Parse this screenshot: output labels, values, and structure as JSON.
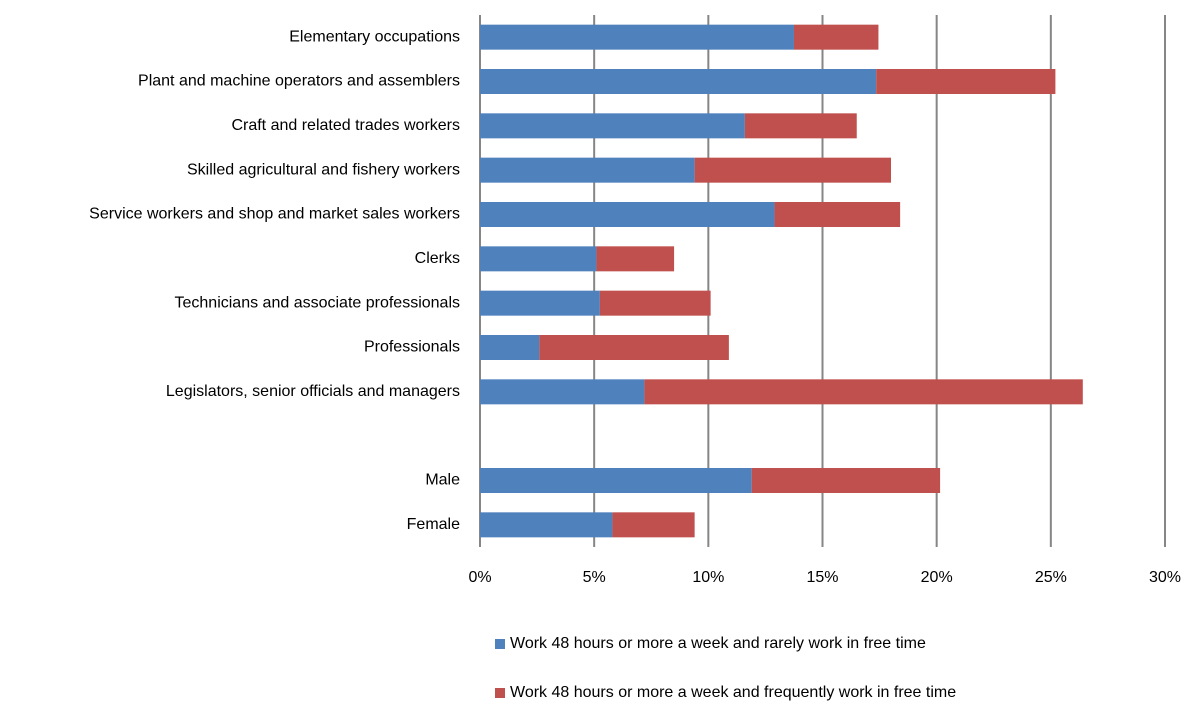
{
  "chart_data": {
    "type": "stacked_bar_horizontal",
    "categories": [
      "Elementary occupations",
      "Plant and machine operators and assemblers",
      "Craft and related trades workers",
      "Skilled agricultural and fishery workers",
      "Service workers and shop and market sales workers",
      "Clerks",
      "Technicians and associate professionals",
      "Professionals",
      "Legislators, senior officials and managers",
      null,
      "Male",
      "Female"
    ],
    "series": [
      {
        "name": "Work 48 hours or more a week and rarely work in free time",
        "color": "#4f81bd",
        "values": [
          13.75,
          17.35,
          11.6,
          9.4,
          12.9,
          5.1,
          5.25,
          2.6,
          7.2,
          null,
          11.9,
          5.8
        ]
      },
      {
        "name": "Work 48 hours or more a week and frequently work in free time",
        "color": "#c0504d",
        "values": [
          3.7,
          7.85,
          4.9,
          8.6,
          5.5,
          3.4,
          4.85,
          8.3,
          19.2,
          null,
          8.25,
          3.6
        ]
      }
    ],
    "xlim": [
      0,
      30
    ],
    "xticks": [
      {
        "value": 0,
        "label": "0%"
      },
      {
        "value": 5,
        "label": "5%"
      },
      {
        "value": 10,
        "label": "10%"
      },
      {
        "value": 15,
        "label": "15%"
      },
      {
        "value": 20,
        "label": "20%"
      },
      {
        "value": 25,
        "label": "25%"
      },
      {
        "value": 30,
        "label": "30%"
      }
    ],
    "grid": true,
    "legend": "bottom"
  }
}
